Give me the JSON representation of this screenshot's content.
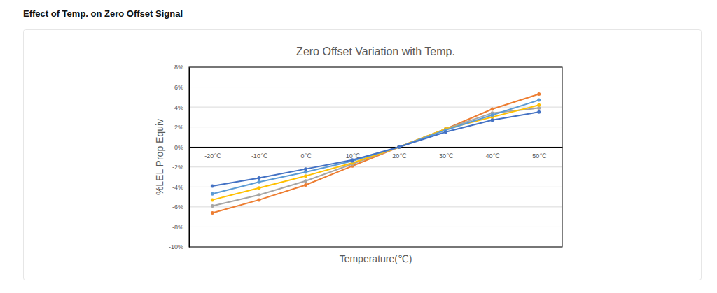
{
  "header": {
    "title": "Effect of Temp. on Zero Offset Signal"
  },
  "chart_data": {
    "type": "line",
    "title": "Zero Offset Variation with Temp.",
    "x_label": "Temperature(℃)",
    "y_label": "%LEL Prop Equiv",
    "categories": [
      "-20℃",
      "-10℃",
      "0℃",
      "10℃",
      "20℃",
      "30℃",
      "40℃",
      "50℃"
    ],
    "series": [
      {
        "color": "#ed7d31",
        "values": [
          -6.6,
          -5.3,
          -3.8,
          -1.9,
          0,
          1.8,
          3.8,
          5.3
        ]
      },
      {
        "color": "#a5a5a5",
        "values": [
          -5.9,
          -4.8,
          -3.4,
          -1.7,
          0,
          1.8,
          3.4,
          3.9
        ]
      },
      {
        "color": "#ffc000",
        "values": [
          -5.3,
          -4.1,
          -2.9,
          -1.6,
          0,
          1.8,
          3.0,
          4.2
        ]
      },
      {
        "color": "#5b9bd5",
        "values": [
          -4.7,
          -3.5,
          -2.5,
          -1.4,
          0,
          1.7,
          3.2,
          4.7
        ]
      },
      {
        "color": "#4472c4",
        "values": [
          -3.9,
          -3.1,
          -2.2,
          -1.3,
          0,
          1.5,
          2.7,
          3.5
        ]
      }
    ],
    "ylim": [
      -10,
      8
    ],
    "yticks": [
      {
        "value": -10,
        "label": "-10%"
      },
      {
        "value": -8,
        "label": "-8%"
      },
      {
        "value": -6,
        "label": "-6%"
      },
      {
        "value": -4,
        "label": "-4%"
      },
      {
        "value": -2,
        "label": "-2%"
      },
      {
        "value": 0,
        "label": "0%"
      },
      {
        "value": 2,
        "label": "2%"
      },
      {
        "value": 4,
        "label": "4%"
      },
      {
        "value": 6,
        "label": "6%"
      },
      {
        "value": 8,
        "label": "8%"
      }
    ],
    "grid": true,
    "marker": "circle",
    "line_style": "solid"
  }
}
